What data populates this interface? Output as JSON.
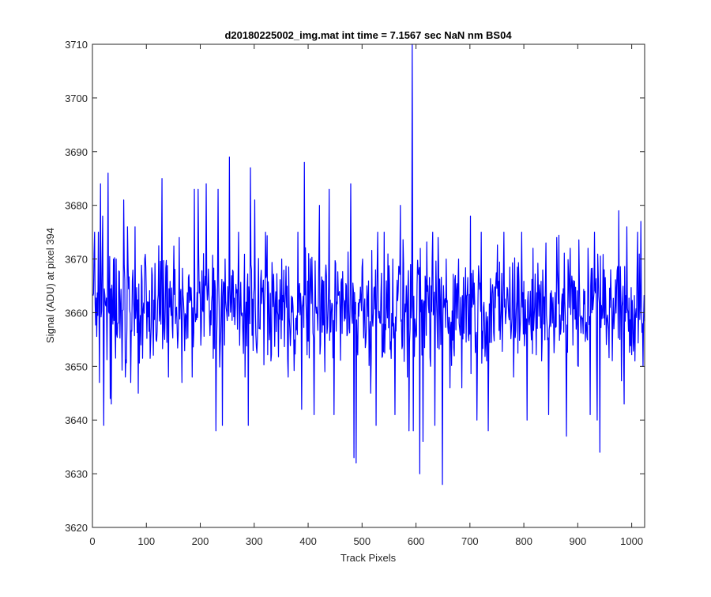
{
  "chart_data": {
    "type": "line",
    "title": "d20180225002_img.mat int time = 7.1567 sec  NaN nm BS04",
    "xlabel": "Track Pixels",
    "ylabel": "Signal (ADU) at pixel 394",
    "xlim": [
      0,
      1024
    ],
    "ylim": [
      3620,
      3710
    ],
    "xticks": [
      "0",
      "100",
      "200",
      "300",
      "400",
      "500",
      "600",
      "700",
      "800",
      "900",
      "1000"
    ],
    "yticks": [
      "3620",
      "3630",
      "3640",
      "3650",
      "3660",
      "3670",
      "3680",
      "3690",
      "3700",
      "3710"
    ],
    "grid": false,
    "series": [
      {
        "color": "#0000ff",
        "noise": {
          "count": 1024,
          "mean": 3661,
          "amplitude": 9.5,
          "min": 3643,
          "max": 3683
        },
        "spikes": [
          [
            3,
            3675
          ],
          [
            10,
            3675
          ],
          [
            12,
            3647
          ],
          [
            14,
            3684
          ],
          [
            18,
            3678
          ],
          [
            20,
            3639
          ],
          [
            28,
            3686
          ],
          [
            32,
            3644
          ],
          [
            34,
            3643
          ],
          [
            38,
            3670
          ],
          [
            57,
            3681
          ],
          [
            60,
            3648
          ],
          [
            64,
            3676
          ],
          [
            70,
            3647
          ],
          [
            78,
            3676
          ],
          [
            84,
            3645
          ],
          [
            96,
            3670
          ],
          [
            110,
            3667
          ],
          [
            128,
            3685
          ],
          [
            133,
            3655
          ],
          [
            140,
            3648
          ],
          [
            160,
            3674
          ],
          [
            165,
            3647
          ],
          [
            184,
            3648
          ],
          [
            188,
            3683
          ],
          [
            195,
            3683
          ],
          [
            205,
            3671
          ],
          [
            210,
            3684
          ],
          [
            228,
            3638
          ],
          [
            232,
            3683
          ],
          [
            240,
            3639
          ],
          [
            245,
            3670
          ],
          [
            253,
            3689
          ],
          [
            270,
            3675
          ],
          [
            282,
            3648
          ],
          [
            288,
            3639
          ],
          [
            292,
            3687
          ],
          [
            300,
            3681
          ],
          [
            320,
            3675
          ],
          [
            330,
            3651
          ],
          [
            350,
            3670
          ],
          [
            362,
            3648
          ],
          [
            380,
            3675
          ],
          [
            387,
            3642
          ],
          [
            392,
            3688
          ],
          [
            400,
            3671
          ],
          [
            410,
            3641
          ],
          [
            420,
            3680
          ],
          [
            430,
            3649
          ],
          [
            438,
            3683
          ],
          [
            447,
            3641
          ],
          [
            470,
            3665
          ],
          [
            478,
            3684
          ],
          [
            484,
            3633
          ],
          [
            488,
            3632
          ],
          [
            500,
            3670
          ],
          [
            515,
            3645
          ],
          [
            525,
            3639
          ],
          [
            528,
            3675
          ],
          [
            540,
            3675
          ],
          [
            556,
            3670
          ],
          [
            560,
            3641
          ],
          [
            570,
            3680
          ],
          [
            583,
            3648
          ],
          [
            586,
            3638
          ],
          [
            592,
            3710
          ],
          [
            594,
            3638
          ],
          [
            606,
            3630
          ],
          [
            612,
            3636
          ],
          [
            620,
            3664
          ],
          [
            626,
            3650
          ],
          [
            630,
            3675
          ],
          [
            634,
            3639
          ],
          [
            640,
            3674
          ],
          [
            648,
            3628
          ],
          [
            655,
            3670
          ],
          [
            662,
            3646
          ],
          [
            678,
            3670
          ],
          [
            684,
            3646
          ],
          [
            700,
            3678
          ],
          [
            712,
            3640
          ],
          [
            720,
            3675
          ],
          [
            733,
            3638
          ],
          [
            755,
            3655
          ],
          [
            762,
            3675
          ],
          [
            780,
            3648
          ],
          [
            795,
            3675
          ],
          [
            805,
            3640
          ],
          [
            816,
            3672
          ],
          [
            832,
            3651
          ],
          [
            840,
            3673
          ],
          [
            845,
            3641
          ],
          [
            860,
            3674
          ],
          [
            878,
            3637
          ],
          [
            885,
            3672
          ],
          [
            900,
            3650
          ],
          [
            912,
            3664
          ],
          [
            918,
            3672
          ],
          [
            922,
            3641
          ],
          [
            930,
            3675
          ],
          [
            935,
            3640
          ],
          [
            940,
            3634
          ],
          [
            948,
            3668
          ],
          [
            960,
            3668
          ],
          [
            966,
            3657
          ],
          [
            975,
            3679
          ],
          [
            985,
            3643
          ],
          [
            990,
            3676
          ],
          [
            1005,
            3651
          ],
          [
            1010,
            3675
          ],
          [
            1016,
            3677
          ],
          [
            1020,
            3650
          ]
        ]
      }
    ]
  }
}
